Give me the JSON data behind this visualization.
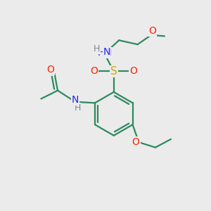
{
  "bg_color": "#ebebeb",
  "bond_color": "#2d8a5e",
  "colors": {
    "C": "#2d8a5e",
    "N": "#2222ff",
    "O": "#ff2200",
    "S": "#ccaa00",
    "H": "#778899"
  },
  "figsize": [
    3.0,
    3.0
  ],
  "dpi": 100
}
